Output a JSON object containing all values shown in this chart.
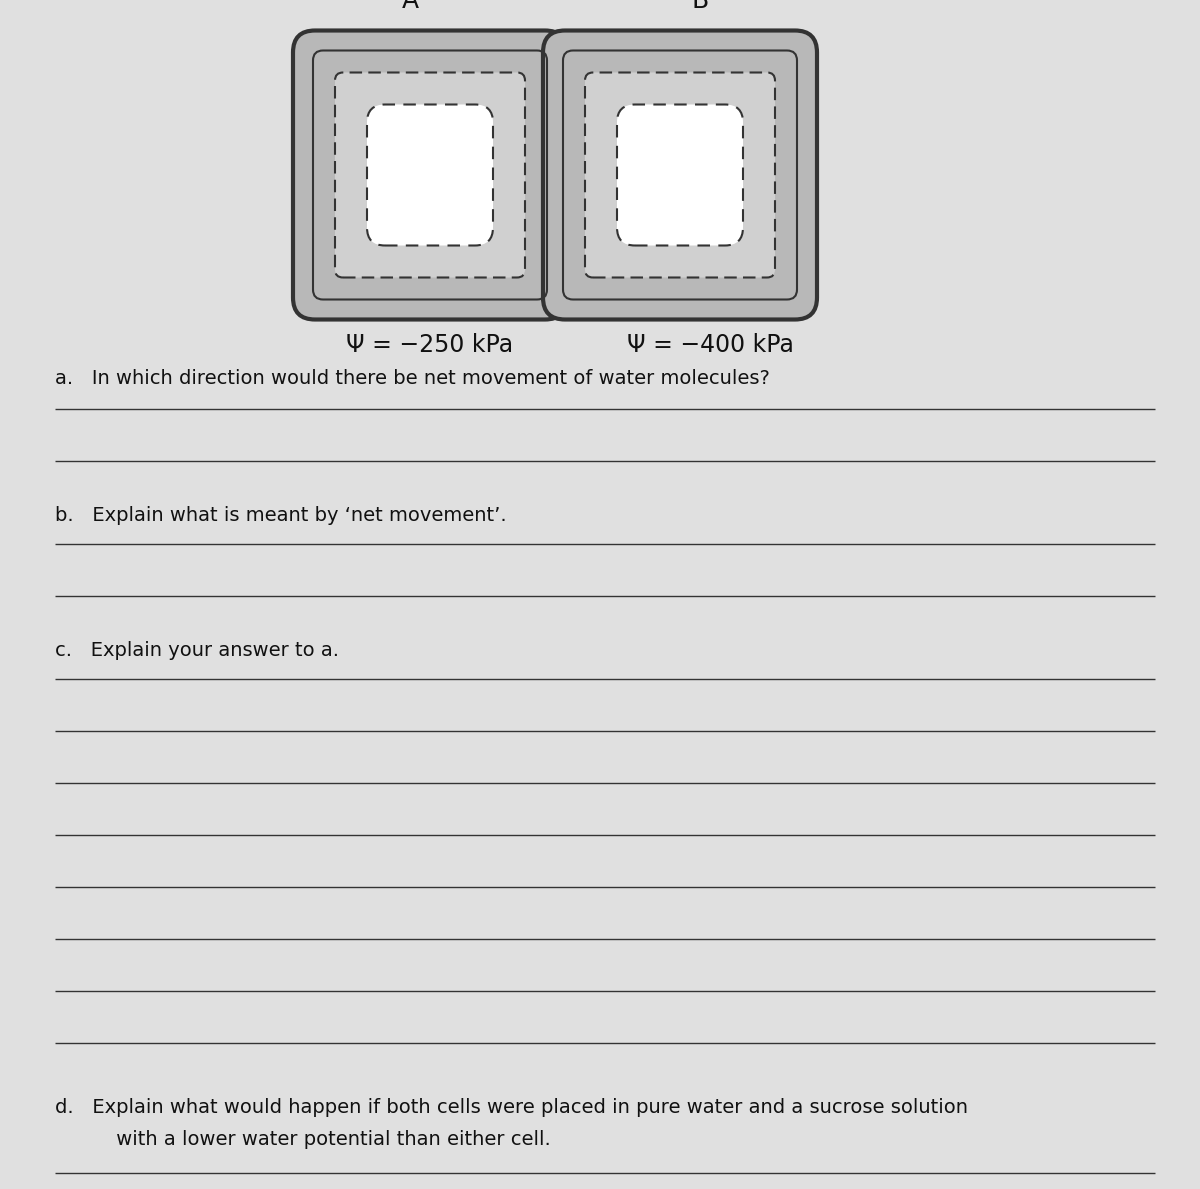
{
  "bg_color": "#c8c8c8",
  "page_bg": "#e0e0e0",
  "cell_A_label": "A",
  "cell_B_label": "B",
  "psi_A": "Ψ = −250 kPa",
  "psi_B": "Ψ = −400 kPa",
  "question_a": "a.   In which direction would there be net movement of water molecules?",
  "question_b": "b.   Explain what is meant by ‘net movement’.",
  "question_c": "c.   Explain your answer to a.",
  "question_d1": "d.   Explain what would happen if both cells were placed in pure water and a sucrose solution",
  "question_d2": "     with a lower water potential than either cell.",
  "line_color": "#333333",
  "text_color": "#111111",
  "cell_wall_fill": "#b8b8b8",
  "cell_cytoplasm_fill": "#d0d0d0",
  "vacuole_fill": "#e8e8e8",
  "cell_border_color": "#333333",
  "font_size_labels": 16,
  "font_size_psi": 17,
  "font_size_questions": 14,
  "lines_a": 2,
  "lines_b": 2,
  "lines_c": 8,
  "lines_d": 1
}
